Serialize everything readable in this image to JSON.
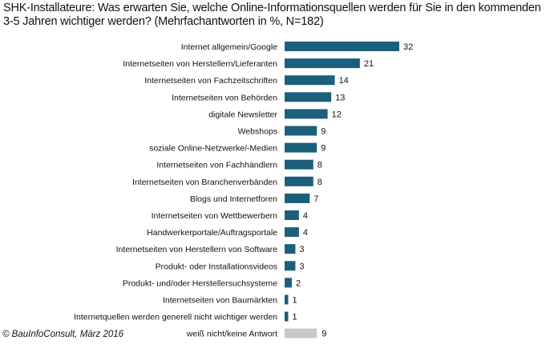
{
  "chart_data": {
    "type": "bar",
    "orientation": "horizontal",
    "title": "SHK-Installateure: Was erwarten Sie, welche Online-Informationsquellen werden für Sie in den kommenden 3-5 Jahren wichtiger werden? (Mehrfachantworten in %, N=182)",
    "categories": [
      "Internet allgemein/Google",
      "Internetseiten von Herstellern/Lieferanten",
      "Internetseiten von Fachzeitschriften",
      "Internetseiten von Behörden",
      "digitale Newsletter",
      "Webshops",
      "soziale Online-Netzwerke/-Medien",
      "Internetseiten von Fachhändlern",
      "Internetseiten von Branchenverbänden",
      "Blogs und Internetforen",
      "Internetseiten von Wettbewerbern",
      "Handwerkerportale/Auftragsportale",
      "Internetseiten von Herstellern von Software",
      "Produkt- oder Installationsvideos",
      "Produkt- und/oder Herstellersuchsysteme",
      "Internetseiten von Baumärkten",
      "Internetquellen werden generell nicht wichtiger werden",
      "weiß nicht/keine Antwort"
    ],
    "values": [
      32,
      21,
      14,
      13,
      12,
      9,
      9,
      8,
      8,
      7,
      4,
      4,
      3,
      3,
      2,
      1,
      1,
      9
    ],
    "value_labels": [
      "32",
      "21",
      "14",
      "13",
      "12",
      "9",
      "9",
      "8",
      "8",
      "7",
      "4",
      "4",
      "3",
      "3",
      "2",
      "1",
      "1",
      "9"
    ],
    "colors": {
      "bar": "#1b5f7b",
      "last_bar": "#c8c8c8"
    },
    "grid": false,
    "legend": "none",
    "xlim": [
      0,
      32
    ]
  },
  "footer": {
    "copyright": "© BauInfoConsult, März 2016"
  }
}
